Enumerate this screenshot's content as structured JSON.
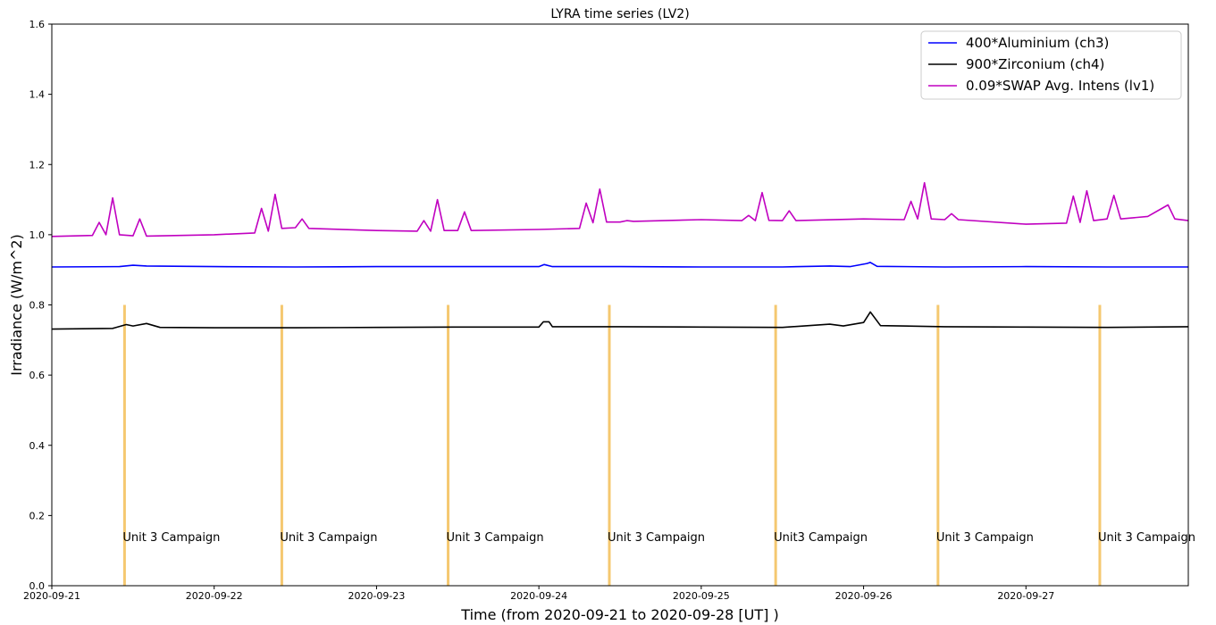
{
  "chart_data": {
    "type": "line",
    "title": "LYRA time series (LV2)",
    "xlabel": "Time (from 2020-09-21 to 2020-09-28 [UT] )",
    "ylabel": "Irradiance (W/m^2)",
    "xlim": [
      "2020-09-21",
      "2020-09-28"
    ],
    "ylim": [
      0.0,
      1.6
    ],
    "x_ticks": [
      "2020-09-21",
      "2020-09-22",
      "2020-09-23",
      "2020-09-24",
      "2020-09-25",
      "2020-09-26",
      "2020-09-27"
    ],
    "y_ticks": [
      "0.0",
      "0.2",
      "0.4",
      "0.6",
      "0.8",
      "1.0",
      "1.2",
      "1.4",
      "1.6"
    ],
    "grid": false,
    "legend_position": "top-right",
    "series": [
      {
        "name": "400*Aluminium (ch3)",
        "color": "#0000ff",
        "points": [
          [
            "2020-09-21T00:00",
            0.908
          ],
          [
            "2020-09-21T10:00",
            0.909
          ],
          [
            "2020-09-21T12:00",
            0.913
          ],
          [
            "2020-09-21T14:00",
            0.911
          ],
          [
            "2020-09-22T00:00",
            0.909
          ],
          [
            "2020-09-22T12:00",
            0.908
          ],
          [
            "2020-09-23T00:00",
            0.909
          ],
          [
            "2020-09-23T12:00",
            0.909
          ],
          [
            "2020-09-24T00:00",
            0.909
          ],
          [
            "2020-09-24T00:48",
            0.915
          ],
          [
            "2020-09-24T02:00",
            0.909
          ],
          [
            "2020-09-24T12:00",
            0.909
          ],
          [
            "2020-09-25T00:00",
            0.908
          ],
          [
            "2020-09-25T12:00",
            0.908
          ],
          [
            "2020-09-25T19:00",
            0.911
          ],
          [
            "2020-09-25T22:00",
            0.909
          ],
          [
            "2020-09-26T00:30",
            0.918
          ],
          [
            "2020-09-26T01:00",
            0.921
          ],
          [
            "2020-09-26T02:00",
            0.91
          ],
          [
            "2020-09-26T12:00",
            0.908
          ],
          [
            "2020-09-27T00:00",
            0.909
          ],
          [
            "2020-09-27T12:00",
            0.908
          ],
          [
            "2020-09-28T00:00",
            0.908
          ]
        ]
      },
      {
        "name": "900*Zirconium (ch4)",
        "color": "#000000",
        "points": [
          [
            "2020-09-21T00:00",
            0.731
          ],
          [
            "2020-09-21T09:00",
            0.733
          ],
          [
            "2020-09-21T11:00",
            0.744
          ],
          [
            "2020-09-21T12:00",
            0.74
          ],
          [
            "2020-09-21T14:00",
            0.747
          ],
          [
            "2020-09-21T16:00",
            0.736
          ],
          [
            "2020-09-22T00:00",
            0.735
          ],
          [
            "2020-09-22T12:00",
            0.735
          ],
          [
            "2020-09-23T00:00",
            0.736
          ],
          [
            "2020-09-23T12:00",
            0.737
          ],
          [
            "2020-09-24T00:00",
            0.737
          ],
          [
            "2020-09-24T00:40",
            0.752
          ],
          [
            "2020-09-24T01:30",
            0.752
          ],
          [
            "2020-09-24T02:00",
            0.738
          ],
          [
            "2020-09-24T12:00",
            0.738
          ],
          [
            "2020-09-25T00:00",
            0.737
          ],
          [
            "2020-09-25T12:00",
            0.736
          ],
          [
            "2020-09-25T19:00",
            0.745
          ],
          [
            "2020-09-25T21:00",
            0.74
          ],
          [
            "2020-09-26T00:00",
            0.75
          ],
          [
            "2020-09-26T01:00",
            0.78
          ],
          [
            "2020-09-26T02:30",
            0.741
          ],
          [
            "2020-09-26T12:00",
            0.738
          ],
          [
            "2020-09-27T00:00",
            0.737
          ],
          [
            "2020-09-27T12:00",
            0.736
          ],
          [
            "2020-09-28T00:00",
            0.738
          ]
        ]
      },
      {
        "name": "0.09*SWAP Avg. Intens (lv1)",
        "color": "#c000c0",
        "points": [
          [
            "2020-09-21T00:00",
            0.995
          ],
          [
            "2020-09-21T06:00",
            0.998
          ],
          [
            "2020-09-21T07:00",
            1.035
          ],
          [
            "2020-09-21T08:00",
            1.0
          ],
          [
            "2020-09-21T09:00",
            1.105
          ],
          [
            "2020-09-21T10:00",
            1.0
          ],
          [
            "2020-09-21T12:00",
            0.997
          ],
          [
            "2020-09-21T13:00",
            1.045
          ],
          [
            "2020-09-21T14:00",
            0.996
          ],
          [
            "2020-09-22T00:00",
            1.0
          ],
          [
            "2020-09-22T06:00",
            1.005
          ],
          [
            "2020-09-22T07:00",
            1.075
          ],
          [
            "2020-09-22T08:00",
            1.01
          ],
          [
            "2020-09-22T09:00",
            1.115
          ],
          [
            "2020-09-22T10:00",
            1.018
          ],
          [
            "2020-09-22T12:00",
            1.02
          ],
          [
            "2020-09-22T13:00",
            1.045
          ],
          [
            "2020-09-22T14:00",
            1.018
          ],
          [
            "2020-09-23T00:00",
            1.012
          ],
          [
            "2020-09-23T06:00",
            1.01
          ],
          [
            "2020-09-23T07:00",
            1.04
          ],
          [
            "2020-09-23T08:00",
            1.01
          ],
          [
            "2020-09-23T09:00",
            1.1
          ],
          [
            "2020-09-23T10:00",
            1.012
          ],
          [
            "2020-09-23T12:00",
            1.012
          ],
          [
            "2020-09-23T13:00",
            1.065
          ],
          [
            "2020-09-23T14:00",
            1.012
          ],
          [
            "2020-09-24T00:00",
            1.015
          ],
          [
            "2020-09-24T06:00",
            1.018
          ],
          [
            "2020-09-24T07:00",
            1.09
          ],
          [
            "2020-09-24T08:00",
            1.034
          ],
          [
            "2020-09-24T09:00",
            1.13
          ],
          [
            "2020-09-24T10:00",
            1.036
          ],
          [
            "2020-09-24T12:00",
            1.036
          ],
          [
            "2020-09-24T13:00",
            1.04
          ],
          [
            "2020-09-24T14:00",
            1.038
          ],
          [
            "2020-09-25T00:00",
            1.043
          ],
          [
            "2020-09-25T06:00",
            1.04
          ],
          [
            "2020-09-25T07:00",
            1.055
          ],
          [
            "2020-09-25T08:00",
            1.04
          ],
          [
            "2020-09-25T09:00",
            1.12
          ],
          [
            "2020-09-25T10:00",
            1.041
          ],
          [
            "2020-09-25T12:00",
            1.04
          ],
          [
            "2020-09-25T13:00",
            1.068
          ],
          [
            "2020-09-25T14:00",
            1.04
          ],
          [
            "2020-09-26T00:00",
            1.045
          ],
          [
            "2020-09-26T06:00",
            1.043
          ],
          [
            "2020-09-26T07:00",
            1.095
          ],
          [
            "2020-09-26T08:00",
            1.045
          ],
          [
            "2020-09-26T09:00",
            1.148
          ],
          [
            "2020-09-26T10:00",
            1.045
          ],
          [
            "2020-09-26T12:00",
            1.043
          ],
          [
            "2020-09-26T13:00",
            1.06
          ],
          [
            "2020-09-26T14:00",
            1.043
          ],
          [
            "2020-09-27T00:00",
            1.03
          ],
          [
            "2020-09-27T06:00",
            1.033
          ],
          [
            "2020-09-27T07:00",
            1.11
          ],
          [
            "2020-09-27T08:00",
            1.035
          ],
          [
            "2020-09-27T09:00",
            1.125
          ],
          [
            "2020-09-27T10:00",
            1.04
          ],
          [
            "2020-09-27T12:00",
            1.045
          ],
          [
            "2020-09-27T13:00",
            1.112
          ],
          [
            "2020-09-27T14:00",
            1.045
          ],
          [
            "2020-09-27T18:00",
            1.052
          ],
          [
            "2020-09-27T21:00",
            1.085
          ],
          [
            "2020-09-27T22:00",
            1.045
          ],
          [
            "2020-09-28T00:00",
            1.04
          ]
        ]
      }
    ],
    "campaigns": [
      {
        "label": "Unit 3 Campaign",
        "x": "2020-09-21T10:45"
      },
      {
        "label": "Unit 3 Campaign",
        "x": "2020-09-22T10:00"
      },
      {
        "label": "Unit 3 Campaign",
        "x": "2020-09-23T10:35"
      },
      {
        "label": "Unit 3 Campaign",
        "x": "2020-09-24T10:25"
      },
      {
        "label": "Unit3 Campaign",
        "x": "2020-09-25T11:00"
      },
      {
        "label": "Unit 3 Campaign",
        "x": "2020-09-26T11:00"
      },
      {
        "label": "Unit 3 Campaign",
        "x": "2020-09-27T10:55"
      }
    ],
    "campaign_marker_top": 0.8,
    "campaign_label_y": 0.14,
    "campaign_color": "#f5c870"
  }
}
